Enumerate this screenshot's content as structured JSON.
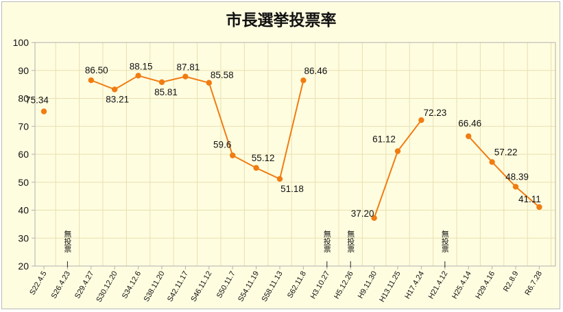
{
  "chart_data": {
    "type": "line",
    "title": "市長選挙投票率",
    "xlabel": "",
    "ylabel": "",
    "ylim": [
      20,
      100
    ],
    "yticks": [
      20,
      30,
      40,
      50,
      60,
      70,
      80,
      90,
      100
    ],
    "grid": true,
    "colors": {
      "series": "#f07c12",
      "plot_bg": "#fffde0",
      "grid": "#e8dfb0",
      "axis": "#b0b0b0"
    },
    "categories": [
      "S22.4.5",
      "S26.4.23",
      "S29.4.27",
      "S30.12.20",
      "S34.12.6",
      "S38.11.20",
      "S42.11.17",
      "S46.11.12",
      "S50.11.7",
      "S54.11.19",
      "S58.11.13",
      "S62.11.8",
      "H3.10.27",
      "H5.12.26",
      "H9.11.30",
      "H13.11.25",
      "H17.4.24",
      "H21.4.12",
      "H25.4.14",
      "H29.4.16",
      "R2.8.9",
      "R6.7.28"
    ],
    "series": [
      {
        "values": [
          75.34,
          null,
          86.5,
          83.21,
          88.15,
          85.81,
          87.81,
          85.58,
          59.6,
          55.12,
          51.18,
          86.46,
          null,
          null,
          37.2,
          61.12,
          72.23,
          null,
          66.46,
          57.22,
          48.39,
          41.11
        ]
      }
    ],
    "data_labels": [
      "75.34",
      "",
      "86.50",
      "83.21",
      "88.15",
      "85.81",
      "87.81",
      "85.58",
      "59.6",
      "55.12",
      "51.18",
      "86.46",
      "",
      "",
      "37.20",
      "61.12",
      "72.23",
      "",
      "66.46",
      "57.22",
      "48.39",
      "41.11"
    ],
    "annotations": [
      {
        "category": "S26.4.23",
        "text": "無投票"
      },
      {
        "category": "H3.10.27",
        "text": "無投票"
      },
      {
        "category": "H5.12.26",
        "text": "無投票"
      },
      {
        "category": "H21.4.12",
        "text": "無投票"
      }
    ]
  }
}
